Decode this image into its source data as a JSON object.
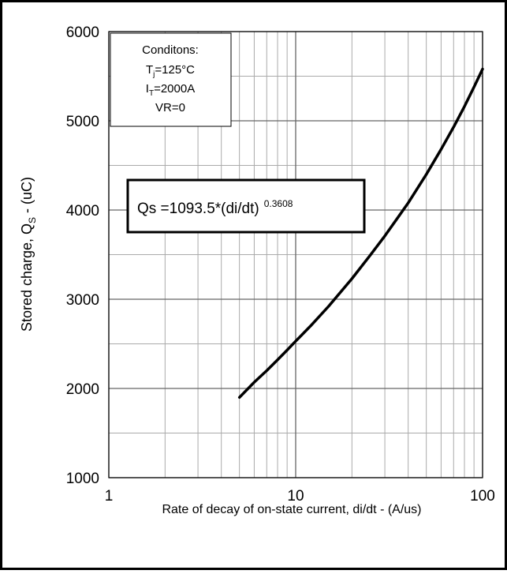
{
  "chart_data": {
    "type": "line",
    "xscale": "log",
    "xlim": [
      1,
      100
    ],
    "ylim": [
      1000,
      6000
    ],
    "grid": true,
    "xlabel": "Rate of decay of on-state current, di/dt - (A/us)",
    "ylabel": {
      "main": "Stored charge, Q",
      "sub": "S",
      "tail": " - (uC)"
    },
    "x_tick_labels": [
      "1",
      "10",
      "100"
    ],
    "x_ticks": [
      1,
      10,
      100
    ],
    "y_tick_labels": [
      "1000",
      "2000",
      "3000",
      "4000",
      "5000",
      "6000"
    ],
    "y_ticks": [
      1000,
      2000,
      3000,
      4000,
      5000,
      6000
    ],
    "series": [
      {
        "x": [
          5,
          6,
          7,
          8,
          9,
          10,
          12,
          15,
          20,
          25,
          30,
          40,
          50,
          60,
          70,
          80,
          90,
          100
        ],
        "y": [
          1900,
          2070,
          2200,
          2320,
          2430,
          2530,
          2700,
          2920,
          3230,
          3490,
          3710,
          4080,
          4400,
          4680,
          4930,
          5160,
          5380,
          5580
        ]
      }
    ],
    "conditions_box": {
      "title": "Conditons:",
      "line1": {
        "main": "T",
        "sub": "j",
        "tail": "=125°C"
      },
      "line2": {
        "main": "I",
        "sub": "T",
        "tail": "=2000A"
      },
      "line3": "VR=0"
    },
    "equation": {
      "text": "Qs =1093.5*(di/dt)",
      "exponent": "0.3608"
    }
  }
}
